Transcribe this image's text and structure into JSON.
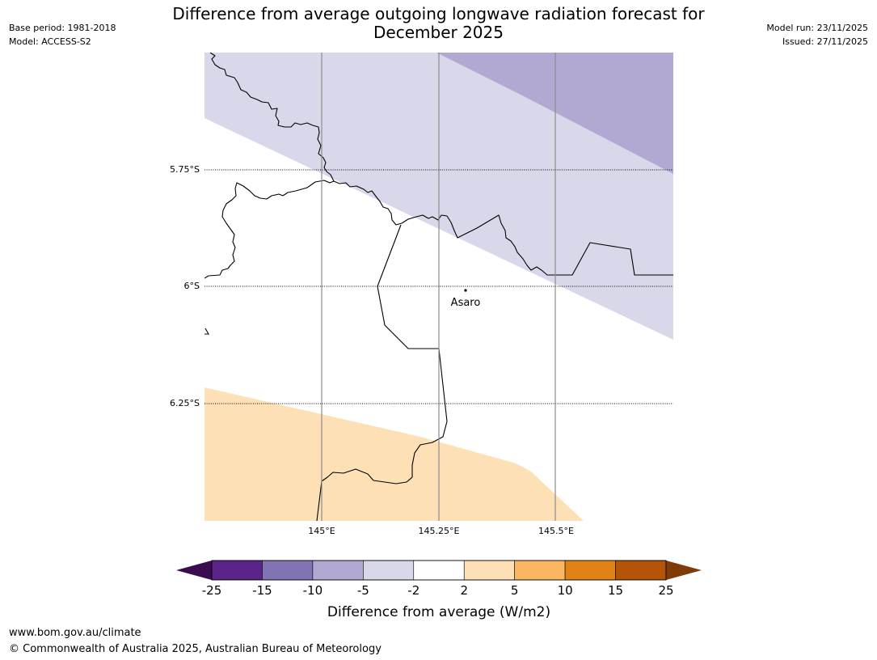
{
  "header": {
    "title_line1": "Difference from average outgoing longwave radiation forecast for",
    "title_line2": "December 2025",
    "base_period": "Base period: 1981-2018",
    "model": "Model: ACCESS-S2",
    "model_run": "Model run: 23/11/2025",
    "issued": "Issued: 27/11/2025"
  },
  "map": {
    "lat_labels": [
      "5.75°S",
      "6°S",
      "6.25°S"
    ],
    "lon_labels": [
      "145°E",
      "145.25°E",
      "145.5°E"
    ],
    "place": "Asaro"
  },
  "colorbar": {
    "ticks": [
      "-25",
      "-15",
      "-10",
      "-5",
      "-2",
      "2",
      "5",
      "10",
      "15",
      "25"
    ],
    "colors": [
      "#3b0b4f",
      "#5a2489",
      "#8274b2",
      "#b1a9d2",
      "#d8d8ea",
      "#ffffff",
      "#fde0b6",
      "#fbb662",
      "#e08215",
      "#b45408",
      "#7f3b08"
    ],
    "label": "Difference from average (W/m2)"
  },
  "footer": {
    "url": "www.bom.gov.au/climate",
    "copyright": "© Commonwealth of Australia 2025, Australian Bureau of Meteorology"
  }
}
